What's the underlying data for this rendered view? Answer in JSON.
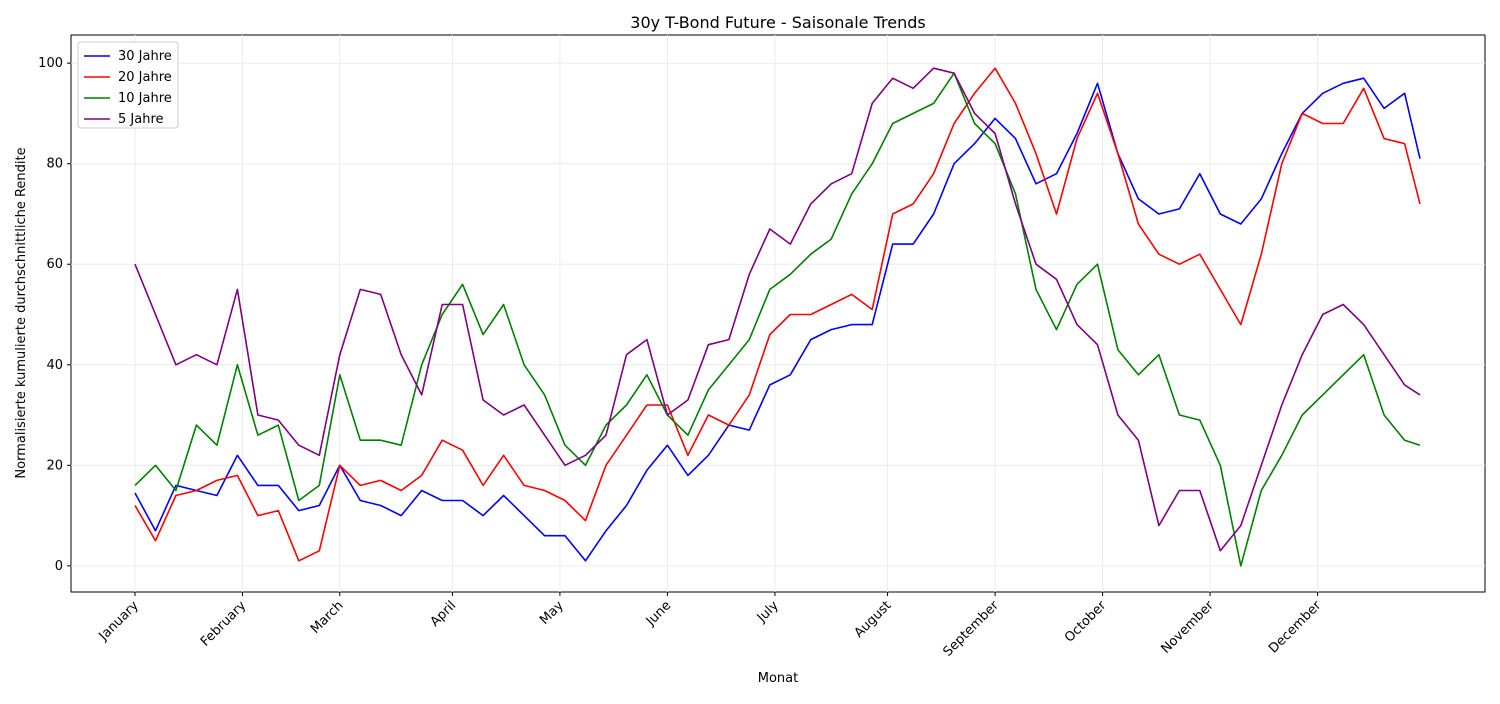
{
  "chart_data": {
    "type": "line",
    "title": "30y T-Bond Future - Saisonale Trends",
    "xlabel": "Monat",
    "ylabel": "Normalisierte kumulierte durchschnittliche Rendite",
    "x": [
      0,
      4,
      8,
      12,
      16,
      20,
      24,
      28,
      32,
      36,
      40,
      44,
      48,
      52,
      56,
      60,
      64,
      68,
      72,
      76,
      80,
      84,
      88,
      92,
      96,
      100,
      104,
      108,
      112,
      116,
      120,
      124,
      128,
      132,
      136,
      140,
      144,
      148,
      152,
      156,
      160,
      164,
      168,
      172,
      176,
      180,
      184,
      188,
      192,
      196,
      200,
      204,
      208,
      212,
      216,
      220,
      224,
      228,
      232,
      236,
      240,
      244,
      248,
      251
    ],
    "xlim": [
      -12.5,
      263.7
    ],
    "xticks": [
      {
        "value": 0,
        "label": "January"
      },
      {
        "value": 21,
        "label": "February"
      },
      {
        "value": 40,
        "label": "March"
      },
      {
        "value": 62,
        "label": "April"
      },
      {
        "value": 83,
        "label": "May"
      },
      {
        "value": 104,
        "label": "June"
      },
      {
        "value": 125,
        "label": "July"
      },
      {
        "value": 147,
        "label": "August"
      },
      {
        "value": 168,
        "label": "September"
      },
      {
        "value": 189,
        "label": "October"
      },
      {
        "value": 210,
        "label": "November"
      },
      {
        "value": 231,
        "label": "December"
      }
    ],
    "ylim": [
      -5.2,
      105.6
    ],
    "yticks": [
      0,
      20,
      40,
      60,
      80,
      100
    ],
    "grid": true,
    "legend": "upper left",
    "series": [
      {
        "name": "30 Jahre",
        "color": "#0000ff",
        "values": [
          14.5,
          7,
          16,
          15,
          14,
          22,
          16,
          16,
          11,
          12,
          20,
          13,
          12,
          10,
          15,
          13,
          13,
          10,
          14,
          10,
          6,
          6,
          1,
          7,
          12,
          19,
          24,
          18,
          22,
          28,
          27,
          36,
          38,
          45,
          47,
          48,
          48,
          64,
          64,
          70,
          80,
          84,
          89,
          85,
          76,
          78,
          86,
          96,
          82,
          73,
          70,
          71,
          78,
          70,
          68,
          73,
          82,
          90,
          94,
          96,
          97,
          91,
          94,
          81
        ]
      },
      {
        "name": "20 Jahre",
        "color": "#ff0000",
        "values": [
          12,
          5,
          14,
          15,
          17,
          18,
          10,
          11,
          1,
          3,
          20,
          16,
          17,
          15,
          18,
          25,
          23,
          16,
          22,
          16,
          15,
          13,
          9,
          20,
          26,
          32,
          32,
          22,
          30,
          28,
          34,
          46,
          50,
          50,
          52,
          54,
          51,
          70,
          72,
          78,
          88,
          94,
          99,
          92,
          82,
          70,
          85,
          94,
          82,
          68,
          62,
          60,
          62,
          55,
          48,
          62,
          80,
          90,
          88,
          88,
          95,
          85,
          84,
          72
        ]
      },
      {
        "name": "10 Jahre",
        "color": "#008000",
        "values": [
          16,
          20,
          15,
          28,
          24,
          40,
          26,
          28,
          13,
          16,
          38,
          25,
          25,
          24,
          40,
          50,
          56,
          46,
          52,
          40,
          34,
          24,
          20,
          28,
          32,
          38,
          30,
          26,
          35,
          40,
          45,
          55,
          58,
          62,
          65,
          74,
          80,
          88,
          90,
          92,
          98,
          88,
          84,
          74,
          55,
          47,
          56,
          60,
          43,
          38,
          42,
          30,
          29,
          20,
          0,
          15,
          22,
          30,
          34,
          38,
          42,
          30,
          25,
          24
        ]
      },
      {
        "name": "5 Jahre",
        "color": "#800080",
        "values": [
          60,
          50,
          40,
          42,
          40,
          55,
          30,
          29,
          24,
          22,
          42,
          55,
          54,
          42,
          34,
          52,
          52,
          33,
          30,
          32,
          26,
          20,
          22,
          26,
          42,
          45,
          30,
          33,
          44,
          45,
          58,
          67,
          64,
          72,
          76,
          78,
          92,
          97,
          95,
          99,
          98,
          90,
          86,
          72,
          60,
          57,
          48,
          44,
          30,
          25,
          8,
          15,
          15,
          3,
          8,
          20,
          32,
          42,
          50,
          52,
          48,
          42,
          36,
          34
        ]
      }
    ]
  }
}
